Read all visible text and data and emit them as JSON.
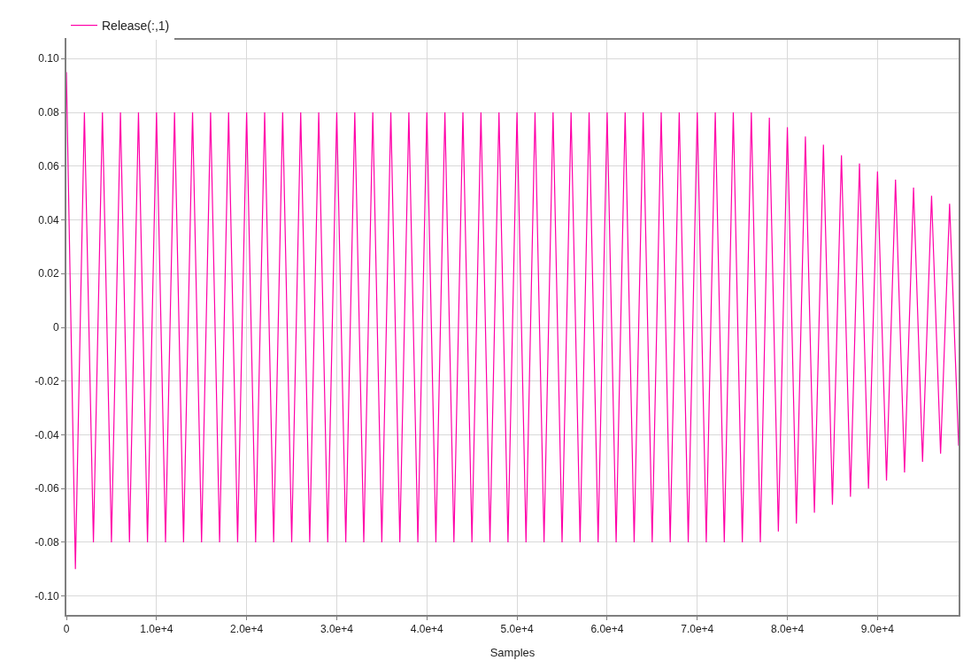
{
  "chart_data": {
    "type": "line",
    "xlabel": "Samples",
    "x": [
      0,
      1000,
      2000,
      3000,
      4000,
      5000,
      6000,
      7000,
      8000,
      9000,
      10000,
      11000,
      12000,
      13000,
      14000,
      15000,
      16000,
      17000,
      18000,
      19000,
      20000,
      21000,
      22000,
      23000,
      24000,
      25000,
      26000,
      27000,
      28000,
      29000,
      30000,
      31000,
      32000,
      33000,
      34000,
      35000,
      36000,
      37000,
      38000,
      39000,
      40000,
      41000,
      42000,
      43000,
      44000,
      45000,
      46000,
      47000,
      48000,
      49000,
      50000,
      51000,
      52000,
      53000,
      54000,
      55000,
      56000,
      57000,
      58000,
      59000,
      60000,
      61000,
      62000,
      63000,
      64000,
      65000,
      66000,
      67000,
      68000,
      69000,
      70000,
      71000,
      72000,
      73000,
      74000,
      75000,
      76000,
      77000,
      78000,
      79000,
      80000,
      81000,
      82000,
      83000,
      84000,
      85000,
      86000,
      87000,
      88000,
      89000,
      90000,
      91000,
      92000,
      93000,
      94000,
      95000,
      96000,
      97000,
      98000,
      99000
    ],
    "series": [
      {
        "name": "Release(:,1)",
        "color": "#ff00a8",
        "values": [
          0.095,
          -0.09,
          0.08,
          -0.08,
          0.08,
          -0.08,
          0.08,
          -0.08,
          0.08,
          -0.08,
          0.08,
          -0.08,
          0.08,
          -0.08,
          0.08,
          -0.08,
          0.08,
          -0.08,
          0.08,
          -0.08,
          0.08,
          -0.08,
          0.08,
          -0.08,
          0.08,
          -0.08,
          0.08,
          -0.08,
          0.08,
          -0.08,
          0.08,
          -0.08,
          0.08,
          -0.08,
          0.08,
          -0.08,
          0.08,
          -0.08,
          0.08,
          -0.08,
          0.08,
          -0.08,
          0.08,
          -0.08,
          0.08,
          -0.08,
          0.08,
          -0.08,
          0.08,
          -0.08,
          0.08,
          -0.08,
          0.08,
          -0.08,
          0.08,
          -0.08,
          0.08,
          -0.08,
          0.08,
          -0.08,
          0.08,
          -0.08,
          0.08,
          -0.08,
          0.08,
          -0.08,
          0.08,
          -0.08,
          0.08,
          -0.08,
          0.08,
          -0.08,
          0.08,
          -0.08,
          0.08,
          -0.08,
          0.08,
          -0.08,
          0.078,
          -0.076,
          0.0745,
          -0.073,
          0.071,
          -0.069,
          0.068,
          -0.066,
          0.064,
          -0.063,
          0.061,
          -0.06,
          0.058,
          -0.057,
          0.055,
          -0.054,
          0.052,
          -0.05,
          0.049,
          -0.047,
          0.046,
          -0.044
        ]
      }
    ],
    "xlim": [
      0,
      99000
    ],
    "xticks": [
      0,
      {
        "value": 10000,
        "label": "1.0e+4"
      },
      {
        "value": 20000,
        "label": "2.0e+4"
      },
      {
        "value": 30000,
        "label": "3.0e+4"
      },
      {
        "value": 40000,
        "label": "4.0e+4"
      },
      {
        "value": 50000,
        "label": "5.0e+4"
      },
      {
        "value": 60000,
        "label": "6.0e+4"
      },
      {
        "value": 70000,
        "label": "7.0e+4"
      },
      {
        "value": 80000,
        "label": "8.0e+4"
      },
      {
        "value": 90000,
        "label": "9.0e+4"
      }
    ],
    "ylim": [
      -0.107,
      0.107
    ],
    "yticks": [
      {
        "value": -0.1,
        "label": "-0.10"
      },
      {
        "value": -0.08,
        "label": "-0.08"
      },
      {
        "value": -0.06,
        "label": "-0.06"
      },
      {
        "value": -0.04,
        "label": "-0.04"
      },
      {
        "value": -0.02,
        "label": "-0.02"
      },
      0,
      0.02,
      0.04,
      0.06,
      0.08,
      {
        "value": 0.1,
        "label": "0.10"
      }
    ],
    "grid": true,
    "legend": "top left",
    "line_style": "solid",
    "marker": "none"
  }
}
